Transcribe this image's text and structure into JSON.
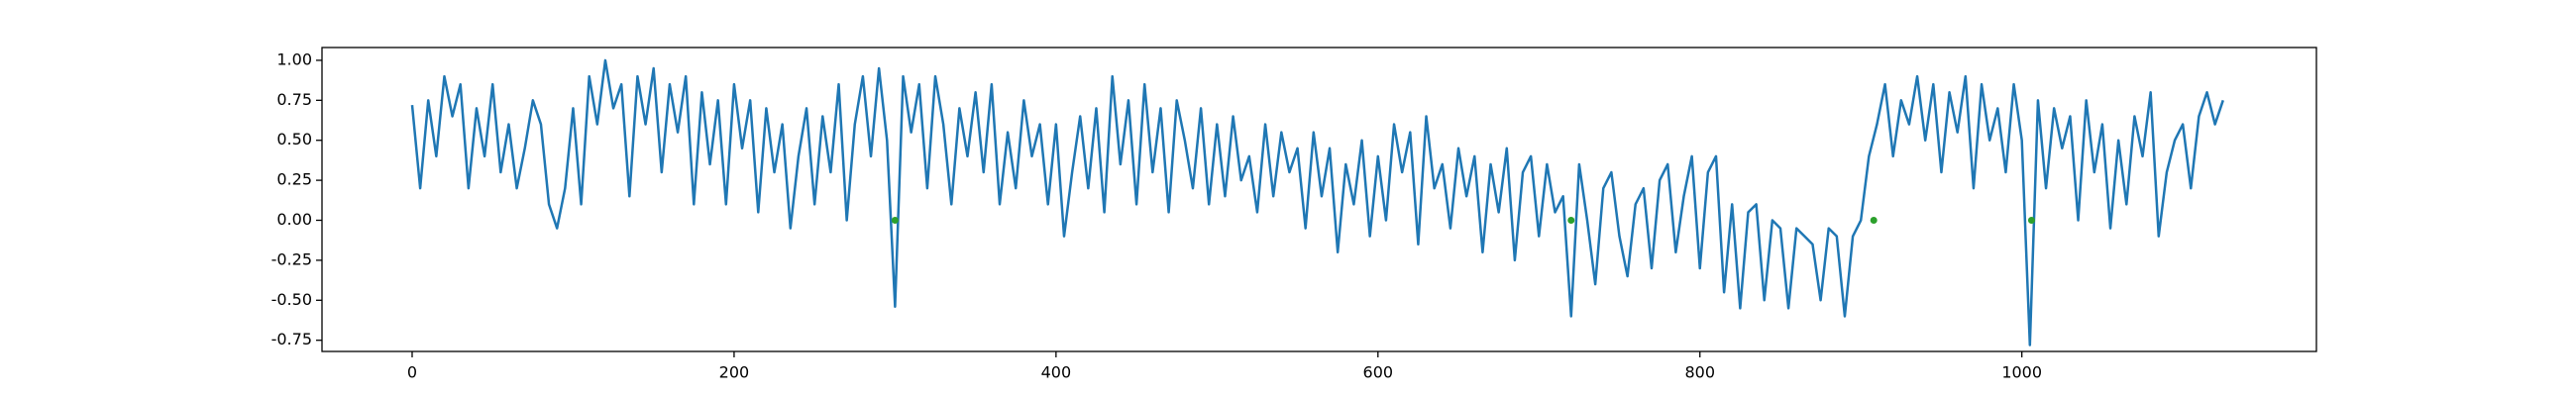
{
  "chart_data": {
    "type": "line",
    "xlim": [
      -56,
      1183
    ],
    "ylim": [
      -0.82,
      1.08
    ],
    "xticks": [
      0,
      200,
      400,
      600,
      800,
      1000
    ],
    "yticks": [
      -0.75,
      {
        "value": -0.5,
        "label": "-0.50"
      },
      -0.25,
      {
        "value": 0,
        "label": "0.00"
      },
      0.25,
      {
        "value": 0.5,
        "label": "0.50"
      },
      0.75,
      {
        "value": 1,
        "label": "1.00"
      }
    ],
    "series": [
      {
        "color": "#1f77b4",
        "marker": false,
        "x": [
          0,
          5,
          10,
          15,
          20,
          25,
          30,
          35,
          40,
          45,
          50,
          55,
          60,
          65,
          70,
          75,
          80,
          85,
          90,
          95,
          100,
          105,
          110,
          115,
          120,
          125,
          130,
          135,
          140,
          145,
          150,
          155,
          160,
          165,
          170,
          175,
          180,
          185,
          190,
          195,
          200,
          205,
          210,
          215,
          220,
          225,
          230,
          235,
          240,
          245,
          250,
          255,
          260,
          265,
          270,
          275,
          280,
          285,
          290,
          295,
          300,
          305,
          310,
          315,
          320,
          325,
          330,
          335,
          340,
          345,
          350,
          355,
          360,
          365,
          370,
          375,
          380,
          385,
          390,
          395,
          400,
          405,
          410,
          415,
          420,
          425,
          430,
          435,
          440,
          445,
          450,
          455,
          460,
          465,
          470,
          475,
          480,
          485,
          490,
          495,
          500,
          505,
          510,
          515,
          520,
          525,
          530,
          535,
          540,
          545,
          550,
          555,
          560,
          565,
          570,
          575,
          580,
          585,
          590,
          595,
          600,
          605,
          610,
          615,
          620,
          625,
          630,
          635,
          640,
          645,
          650,
          655,
          660,
          665,
          670,
          675,
          680,
          685,
          690,
          695,
          700,
          705,
          710,
          715,
          720,
          725,
          730,
          735,
          740,
          745,
          750,
          755,
          760,
          765,
          770,
          775,
          780,
          785,
          790,
          795,
          800,
          805,
          810,
          815,
          820,
          825,
          830,
          835,
          840,
          845,
          850,
          855,
          860,
          865,
          870,
          875,
          880,
          885,
          890,
          895,
          900,
          905,
          910,
          915,
          920,
          925,
          930,
          935,
          940,
          945,
          950,
          955,
          960,
          965,
          970,
          975,
          980,
          985,
          990,
          995,
          1000,
          1005,
          1010,
          1015,
          1020,
          1025,
          1030,
          1035,
          1040,
          1045,
          1050,
          1055,
          1060,
          1065,
          1070,
          1075,
          1080,
          1085,
          1090,
          1095,
          1100,
          1105,
          1110,
          1115,
          1120,
          1125
        ],
        "values": [
          0.72,
          0.2,
          0.75,
          0.4,
          0.9,
          0.65,
          0.85,
          0.2,
          0.7,
          0.4,
          0.85,
          0.3,
          0.6,
          0.2,
          0.45,
          0.75,
          0.6,
          0.1,
          -0.05,
          0.2,
          0.7,
          0.1,
          0.9,
          0.6,
          1.0,
          0.7,
          0.85,
          0.15,
          0.9,
          0.6,
          0.95,
          0.3,
          0.85,
          0.55,
          0.9,
          0.1,
          0.8,
          0.35,
          0.75,
          0.1,
          0.85,
          0.45,
          0.75,
          0.05,
          0.7,
          0.3,
          0.6,
          -0.05,
          0.4,
          0.7,
          0.1,
          0.65,
          0.3,
          0.85,
          0.0,
          0.6,
          0.9,
          0.4,
          0.95,
          0.5,
          -0.54,
          0.9,
          0.55,
          0.85,
          0.2,
          0.9,
          0.6,
          0.1,
          0.7,
          0.4,
          0.8,
          0.3,
          0.85,
          0.1,
          0.55,
          0.2,
          0.75,
          0.4,
          0.6,
          0.1,
          0.6,
          -0.1,
          0.3,
          0.65,
          0.2,
          0.7,
          0.05,
          0.9,
          0.35,
          0.75,
          0.1,
          0.85,
          0.3,
          0.7,
          0.05,
          0.75,
          0.5,
          0.2,
          0.7,
          0.1,
          0.6,
          0.15,
          0.65,
          0.25,
          0.4,
          0.05,
          0.6,
          0.15,
          0.55,
          0.3,
          0.45,
          -0.05,
          0.55,
          0.15,
          0.45,
          -0.2,
          0.35,
          0.1,
          0.5,
          -0.1,
          0.4,
          0.0,
          0.6,
          0.3,
          0.55,
          -0.15,
          0.65,
          0.2,
          0.35,
          -0.05,
          0.45,
          0.15,
          0.4,
          -0.2,
          0.35,
          0.05,
          0.45,
          -0.25,
          0.3,
          0.4,
          -0.1,
          0.35,
          0.05,
          0.15,
          -0.6,
          0.35,
          0.0,
          -0.4,
          0.2,
          0.3,
          -0.1,
          -0.35,
          0.1,
          0.2,
          -0.3,
          0.25,
          0.35,
          -0.2,
          0.15,
          0.4,
          -0.3,
          0.3,
          0.4,
          -0.45,
          0.1,
          -0.55,
          0.05,
          0.1,
          -0.5,
          0.0,
          -0.05,
          -0.55,
          -0.05,
          -0.1,
          -0.15,
          -0.5,
          -0.05,
          -0.1,
          -0.6,
          -0.1,
          0.0,
          0.4,
          0.6,
          0.85,
          0.4,
          0.75,
          0.6,
          0.9,
          0.5,
          0.85,
          0.3,
          0.8,
          0.55,
          0.9,
          0.2,
          0.85,
          0.5,
          0.7,
          0.3,
          0.85,
          0.5,
          -0.78,
          0.75,
          0.2,
          0.7,
          0.45,
          0.65,
          0.0,
          0.75,
          0.3,
          0.6,
          -0.05,
          0.5,
          0.1,
          0.65,
          0.4,
          0.8,
          -0.1,
          0.3,
          0.5,
          0.6,
          0.2,
          0.65,
          0.8,
          0.6,
          0.75
        ]
      },
      {
        "color": "#2ca02c",
        "marker": true,
        "x": [
          300,
          720,
          908,
          1006
        ],
        "values": [
          0,
          0,
          0,
          0
        ]
      }
    ]
  }
}
